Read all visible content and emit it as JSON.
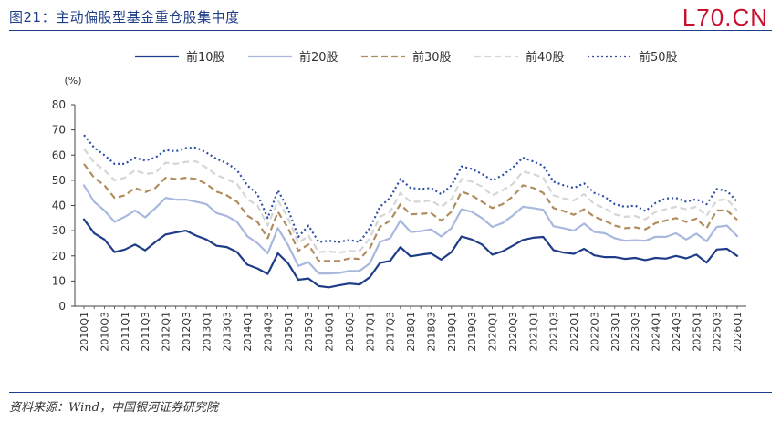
{
  "header": {
    "title": "图21：主动偏股型基金重仓股集中度",
    "brand": "L70.CN"
  },
  "footer": {
    "source": "资料来源：Wind，中国银河证券研究院"
  },
  "chart_data": {
    "type": "line",
    "unit_label": "(%)",
    "ylim": [
      0,
      80
    ],
    "yticks": [
      0,
      10,
      20,
      30,
      40,
      50,
      60,
      70,
      80
    ],
    "grid": false,
    "legend_position": "top",
    "categories": [
      "2010Q1",
      "2010Q2",
      "2010Q3",
      "2010Q4",
      "2011Q1",
      "2011Q2",
      "2011Q3",
      "2011Q4",
      "2012Q1",
      "2012Q2",
      "2012Q3",
      "2012Q4",
      "2013Q1",
      "2013Q2",
      "2013Q3",
      "2013Q4",
      "2014Q1",
      "2014Q2",
      "2014Q3",
      "2014Q4",
      "2015Q1",
      "2015Q2",
      "2015Q3",
      "2015Q4",
      "2016Q1",
      "2016Q2",
      "2016Q3",
      "2016Q4",
      "2017Q1",
      "2017Q2",
      "2017Q3",
      "2017Q4",
      "2018Q1",
      "2018Q2",
      "2018Q3",
      "2018Q4",
      "2019Q1",
      "2019Q2",
      "2019Q3",
      "2019Q4",
      "2020Q1",
      "2020Q2",
      "2020Q3",
      "2020Q4",
      "2021Q1",
      "2021Q2",
      "2021Q3",
      "2021Q4",
      "2022Q1",
      "2022Q2",
      "2022Q3",
      "2022Q4",
      "2023Q1",
      "2023Q2",
      "2023Q3",
      "2023Q4",
      "2024Q1",
      "2024Q2",
      "2024Q3",
      "2024Q4",
      "2025Q1",
      "2025Q2",
      "2025Q3",
      "2025Q4",
      "2026Q1"
    ],
    "xtick_labels": [
      "2010Q1",
      "2010Q3",
      "2011Q1",
      "2011Q3",
      "2012Q1",
      "2012Q3",
      "2013Q1",
      "2013Q3",
      "2014Q1",
      "2014Q3",
      "2015Q1",
      "2015Q3",
      "2016Q1",
      "2016Q3",
      "2017Q1",
      "2017Q3",
      "2018Q1",
      "2018Q3",
      "2019Q1",
      "2019Q3",
      "2020Q1",
      "2020Q3",
      "2021Q1",
      "2021Q3",
      "2022Q1",
      "2022Q3",
      "2023Q1",
      "2023Q3",
      "2024Q1",
      "2024Q3",
      "2025Q1",
      "2025Q3",
      "2026Q1"
    ],
    "series": [
      {
        "name": "前10股",
        "color": "#1f3c88",
        "dash": "solid",
        "width": 2.2,
        "values": [
          34.5,
          29,
          26.5,
          21.5,
          22.5,
          24.5,
          22.2,
          25.5,
          28.5,
          29.3,
          30,
          28,
          26.5,
          24,
          23.5,
          21.5,
          16.5,
          15,
          12.8,
          21,
          17,
          10.5,
          11,
          8,
          7.5,
          8.3,
          9,
          8.6,
          11.5,
          17.2,
          18,
          23.5,
          19.8,
          20.5,
          21,
          18.5,
          21.5,
          27.7,
          26.5,
          24.5,
          20.5,
          21.8,
          24,
          26.3,
          27.2,
          27.5,
          22.3,
          21.3,
          20.8,
          22.8,
          20.2,
          19.5,
          19.5,
          18.8,
          19.2,
          18.3,
          19.2,
          18.9,
          20,
          19,
          20.5,
          17.3,
          22.5,
          22.8,
          20
        ]
      },
      {
        "name": "前20股",
        "color": "#a8b8de",
        "dash": "solid",
        "width": 2.2,
        "values": [
          48,
          41.5,
          38,
          33.5,
          35.5,
          38,
          35.3,
          39,
          43,
          42.3,
          42.3,
          41.5,
          40.5,
          37,
          35.8,
          33.5,
          27.8,
          25,
          21,
          31,
          24.2,
          16,
          17.5,
          13,
          13,
          13.2,
          14,
          14,
          17,
          25.5,
          27,
          34,
          29.5,
          29.8,
          30.5,
          27.7,
          31,
          38.5,
          37.5,
          35,
          31.5,
          33,
          36,
          39.5,
          39,
          38.3,
          31.8,
          31,
          30,
          32.8,
          29.5,
          29,
          27,
          26,
          26.2,
          26,
          27.6,
          27.5,
          29,
          26.5,
          28.8,
          25.8,
          31.5,
          32,
          27.8
        ]
      },
      {
        "name": "前30股",
        "color": "#b08d5e",
        "dash": "7,4",
        "width": 2.2,
        "values": [
          56.5,
          51,
          48,
          43,
          44,
          47,
          45.3,
          47,
          51,
          50.5,
          51,
          50.5,
          48.5,
          45.5,
          44,
          41.5,
          36,
          33.5,
          27,
          37.5,
          31,
          22,
          24.5,
          18,
          18,
          18,
          19,
          18.8,
          23,
          31.5,
          34,
          40.5,
          36.5,
          36.7,
          37,
          34,
          37.5,
          45.5,
          44,
          41.5,
          39,
          40.5,
          43.5,
          48,
          47,
          45,
          39,
          37.8,
          36.3,
          38.5,
          35.5,
          34,
          32,
          31,
          31.3,
          30.5,
          33,
          34,
          35,
          33.5,
          34.8,
          31,
          38,
          38,
          34.3
        ]
      },
      {
        "name": "前40股",
        "color": "#d6d6d6",
        "dash": "7,4",
        "width": 2.2,
        "values": [
          62.5,
          57,
          54,
          50,
          51,
          54,
          52.5,
          53,
          57,
          56.5,
          57.3,
          57.5,
          55,
          52,
          50.5,
          48.5,
          42.5,
          40,
          32,
          42,
          35,
          25,
          28,
          21.5,
          21.8,
          21.3,
          22,
          21.8,
          27,
          35.5,
          37.5,
          45,
          41.5,
          41.5,
          42,
          39.5,
          42.5,
          50.5,
          49.5,
          47.5,
          44,
          46,
          48.5,
          53.5,
          52.5,
          51,
          44,
          42.8,
          42,
          44.5,
          40.5,
          39,
          36.5,
          35.5,
          35.8,
          34.5,
          37.5,
          38.5,
          39.5,
          38.5,
          39.5,
          36,
          42,
          42.5,
          38
        ]
      },
      {
        "name": "前50股",
        "color": "#2f4fa8",
        "dash": "2,3",
        "width": 2.2,
        "values": [
          68,
          63,
          60,
          56.5,
          56.5,
          59,
          57.8,
          59,
          62,
          61.5,
          62.8,
          63,
          61,
          58.5,
          56.8,
          54,
          48,
          44.5,
          35,
          46,
          38.5,
          27.5,
          32,
          25.5,
          26,
          25.5,
          26.3,
          25.5,
          31,
          39.5,
          43,
          50.5,
          47,
          46.5,
          47,
          44.5,
          48,
          55.5,
          54.5,
          52.5,
          50,
          52,
          55,
          59,
          57.5,
          55.8,
          49.5,
          48,
          47,
          48.8,
          45,
          43.5,
          40.5,
          39.5,
          40,
          37.8,
          41,
          42.8,
          43,
          41.5,
          42.5,
          40.5,
          46.5,
          45.8,
          41.5
        ]
      }
    ]
  }
}
